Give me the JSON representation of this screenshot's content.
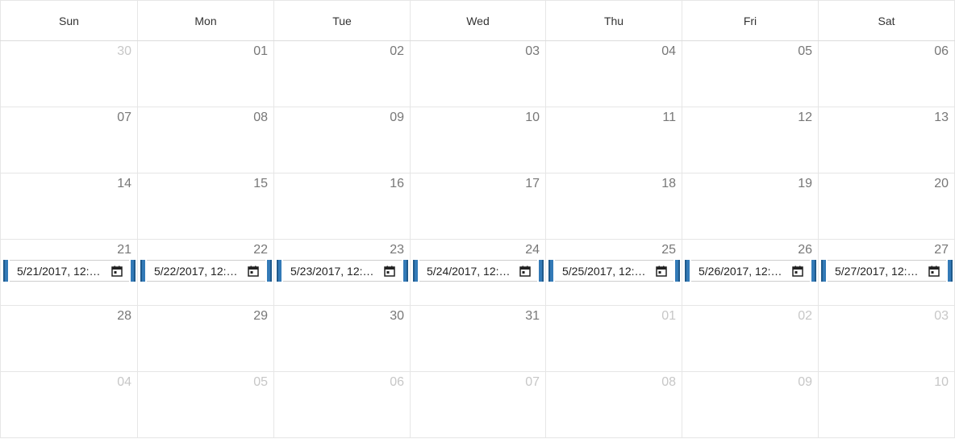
{
  "headers": [
    "Sun",
    "Mon",
    "Tue",
    "Wed",
    "Thu",
    "Fri",
    "Sat"
  ],
  "weeks": [
    {
      "days": [
        {
          "n": "30",
          "other": true
        },
        {
          "n": "01"
        },
        {
          "n": "02"
        },
        {
          "n": "03"
        },
        {
          "n": "04"
        },
        {
          "n": "05"
        },
        {
          "n": "06"
        }
      ]
    },
    {
      "days": [
        {
          "n": "07"
        },
        {
          "n": "08"
        },
        {
          "n": "09"
        },
        {
          "n": "10"
        },
        {
          "n": "11"
        },
        {
          "n": "12"
        },
        {
          "n": "13"
        }
      ]
    },
    {
      "days": [
        {
          "n": "14"
        },
        {
          "n": "15"
        },
        {
          "n": "16"
        },
        {
          "n": "17"
        },
        {
          "n": "18"
        },
        {
          "n": "19"
        },
        {
          "n": "20"
        }
      ]
    },
    {
      "days": [
        {
          "n": "21"
        },
        {
          "n": "22"
        },
        {
          "n": "23"
        },
        {
          "n": "24"
        },
        {
          "n": "25"
        },
        {
          "n": "26"
        },
        {
          "n": "27"
        }
      ]
    },
    {
      "days": [
        {
          "n": "28"
        },
        {
          "n": "29"
        },
        {
          "n": "30"
        },
        {
          "n": "31"
        },
        {
          "n": "01",
          "other": true
        },
        {
          "n": "02",
          "other": true
        },
        {
          "n": "03",
          "other": true
        }
      ]
    },
    {
      "days": [
        {
          "n": "04",
          "other": true
        },
        {
          "n": "05",
          "other": true
        },
        {
          "n": "06",
          "other": true
        },
        {
          "n": "07",
          "other": true
        },
        {
          "n": "08",
          "other": true
        },
        {
          "n": "09",
          "other": true
        },
        {
          "n": "10",
          "other": true
        }
      ]
    }
  ],
  "events": [
    {
      "label": "5/21/2017, 12:…",
      "icon": "calendar-icon"
    },
    {
      "label": "5/22/2017, 12:…",
      "icon": "calendar-icon"
    },
    {
      "label": "5/23/2017, 12:…",
      "icon": "calendar-icon"
    },
    {
      "label": "5/24/2017, 12:…",
      "icon": "calendar-icon"
    },
    {
      "label": "5/25/2017, 12:…",
      "icon": "calendar-icon"
    },
    {
      "label": "5/26/2017, 12:…",
      "icon": "calendar-icon"
    },
    {
      "label": "5/27/2017, 12:…",
      "icon": "calendar-icon"
    }
  ],
  "colors": {
    "accent": "#337ab7",
    "border": "#e6e6e6",
    "daynum": "#777777",
    "daynum_other": "#c7c7c7"
  }
}
